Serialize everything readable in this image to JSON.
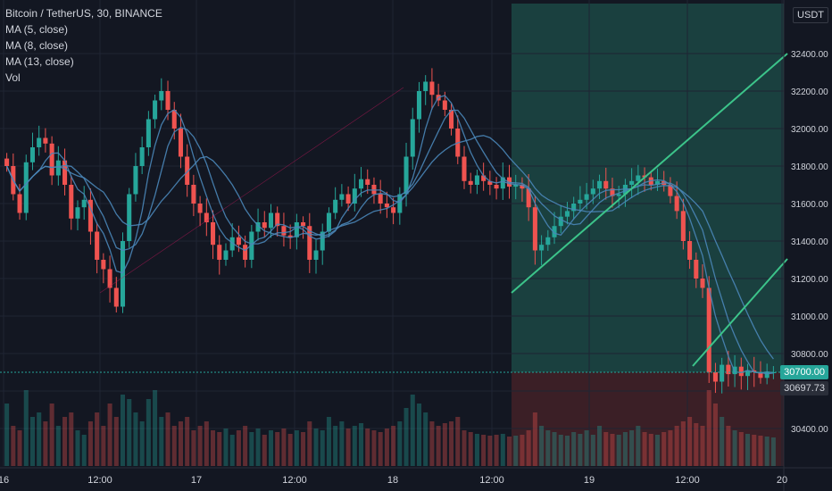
{
  "header": {
    "symbol": "Bitcoin / TetherUS, 30, BINANCE",
    "indicators": [
      "MA (5, close)",
      "MA (8, close)",
      "MA (13, close)",
      "Vol"
    ],
    "currency": "USDT"
  },
  "colors": {
    "background": "#131722",
    "up": "#26a69a",
    "down": "#ef5350",
    "ma": "#4a86b8",
    "trendline": "#3cc48a",
    "profit_zone": "#1e4f4a",
    "loss_zone": "#4a2328",
    "grid": "#1f2433",
    "text": "#d1d4dc",
    "price_tag": "#26a69a"
  },
  "price_tags": {
    "last": "30700.00",
    "second": "30697.73"
  },
  "chart_data": {
    "type": "candlestick",
    "title": "Bitcoin / TetherUS, 30, BINANCE",
    "xlabel": "",
    "ylabel": "",
    "x_ticks": [
      "16",
      "12:00",
      "17",
      "12:00",
      "18",
      "12:00",
      "19",
      "12:00",
      "20"
    ],
    "y_ticks": [
      "30400.00",
      "30600.00",
      "30800.00",
      "31000.00",
      "31200.00",
      "31400.00",
      "31600.00",
      "31800.00",
      "32000.00",
      "32200.00",
      "32400.00"
    ],
    "ylim": [
      30200,
      32700
    ],
    "grid": true,
    "last_price": 30700.0,
    "series_names": [
      "MA (5, close)",
      "MA (8, close)",
      "MA (13, close)",
      "Vol"
    ],
    "close": [
      31800,
      31650,
      31550,
      31820,
      31900,
      31950,
      31920,
      31750,
      31830,
      31700,
      31520,
      31580,
      31620,
      31450,
      31300,
      31250,
      31150,
      31050,
      31400,
      31650,
      31800,
      31900,
      32050,
      32150,
      32200,
      32100,
      32000,
      31850,
      31700,
      31600,
      31550,
      31500,
      31380,
      31300,
      31350,
      31420,
      31380,
      31300,
      31450,
      31500,
      31470,
      31550,
      31480,
      31430,
      31420,
      31500,
      31480,
      31300,
      31350,
      31450,
      31550,
      31620,
      31650,
      31600,
      31680,
      31730,
      31700,
      31650,
      31600,
      31580,
      31550,
      31650,
      31850,
      32050,
      32200,
      32250,
      32180,
      32150,
      32100,
      32000,
      31850,
      31720,
      31700,
      31750,
      31720,
      31700,
      31680,
      31740,
      31690,
      31700,
      31680,
      31580,
      31350,
      31380,
      31420,
      31480,
      31530,
      31560,
      31600,
      31620,
      31650,
      31680,
      31720,
      31680,
      31640,
      31650,
      31700,
      31720,
      31750,
      31740,
      31700,
      31720,
      31700,
      31640,
      31560,
      31400,
      31300,
      31200,
      31150,
      30700,
      30650,
      30740,
      30690,
      30730,
      30680,
      30710,
      30700,
      30670,
      30700,
      30700
    ],
    "volume": [
      70,
      45,
      40,
      85,
      55,
      60,
      50,
      70,
      45,
      55,
      60,
      40,
      35,
      50,
      60,
      45,
      70,
      55,
      80,
      75,
      60,
      50,
      75,
      85,
      55,
      60,
      45,
      50,
      55,
      40,
      45,
      50,
      40,
      38,
      42,
      35,
      40,
      45,
      38,
      42,
      35,
      40,
      38,
      42,
      36,
      40,
      38,
      50,
      42,
      40,
      55,
      45,
      50,
      42,
      45,
      48,
      42,
      40,
      38,
      42,
      45,
      50,
      65,
      80,
      70,
      60,
      50,
      45,
      48,
      50,
      55,
      40,
      38,
      36,
      35,
      34,
      35,
      36,
      33,
      34,
      35,
      40,
      60,
      45,
      40,
      38,
      35,
      34,
      38,
      36,
      40,
      35,
      45,
      38,
      36,
      35,
      38,
      40,
      45,
      38,
      36,
      35,
      38,
      40,
      45,
      50,
      55,
      48,
      45,
      85,
      70,
      55,
      45,
      40,
      38,
      36,
      35,
      34,
      33,
      32
    ]
  }
}
